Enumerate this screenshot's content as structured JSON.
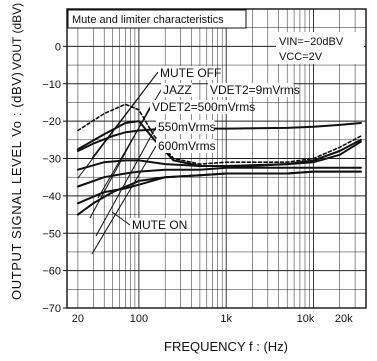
{
  "chart_data": {
    "type": "line",
    "title": "Mute and limiter characteristics",
    "conditions": [
      "VIN=−20dBV",
      "VCC=2V"
    ],
    "xlabel": "FREQUENCY f : (Hz)",
    "ylabel": "OUTPUT SIGNAL LEVEL Vo : (dBV)",
    "ylabel_top": "VOUT  (dBV)",
    "x_scale": "log",
    "xlim": [
      15,
      40000
    ],
    "ylim": [
      -70,
      10
    ],
    "x_ticks": [
      {
        "value": 20,
        "label": "20"
      },
      {
        "value": 100,
        "label": "100"
      },
      {
        "value": 1000,
        "label": "1k"
      },
      {
        "value": 10000,
        "label": "10k"
      },
      {
        "value": 20000,
        "label": "20k"
      }
    ],
    "y_ticks": [
      0,
      -10,
      -20,
      -30,
      -40,
      -50,
      -60,
      -70
    ],
    "y_tick_labels": [
      "0",
      "−10",
      "−20",
      "−30",
      "−40",
      "−50",
      "−60",
      "−70"
    ],
    "grid": true,
    "series": [
      {
        "name": "MUTE OFF",
        "dash": false,
        "stroke": "#111111",
        "x": [
          20,
          30,
          50,
          70,
          100,
          200,
          500,
          1000,
          5000,
          10000,
          20000,
          35000
        ],
        "y": [
          -28,
          -26,
          -24,
          -23,
          -22.5,
          -22,
          -22,
          -22,
          -21.8,
          -21.5,
          -21,
          -20.5
        ]
      },
      {
        "name": "JAZZ",
        "dash": true,
        "stroke": "#111111",
        "x": [
          20,
          40,
          70,
          100,
          150,
          250,
          500,
          1000,
          2000,
          5000,
          10000,
          20000,
          35000
        ],
        "y": [
          -22.5,
          -18,
          -15.5,
          -17,
          -24,
          -30,
          -31.5,
          -31,
          -31,
          -31,
          -30,
          -27,
          -24
        ]
      },
      {
        "name": "VDET2=9mVrms",
        "dash": false,
        "stroke": "#111111",
        "x": [
          20,
          40,
          70,
          100,
          150,
          250,
          500,
          1000,
          2000,
          5000,
          10000,
          20000,
          35000
        ],
        "y": [
          -27.5,
          -23.5,
          -20.5,
          -20,
          -25,
          -30.5,
          -32,
          -32,
          -32,
          -31.5,
          -30.5,
          -28,
          -25
        ]
      },
      {
        "name": "VDET2=500mVrms",
        "dash": false,
        "stroke": "#111111",
        "x": [
          20,
          40,
          70,
          100,
          200,
          500,
          1000,
          5000,
          10000,
          20000,
          35000
        ],
        "y": [
          -33,
          -31,
          -30.5,
          -30.5,
          -31.5,
          -32,
          -32,
          -31.5,
          -31,
          -29,
          -25.5
        ]
      },
      {
        "name": "550mVrms",
        "dash": false,
        "stroke": "#111111",
        "x": [
          20,
          40,
          70,
          100,
          200,
          500,
          1000,
          5000,
          10000,
          20000,
          35000
        ],
        "y": [
          -37.5,
          -35,
          -34,
          -33.5,
          -33,
          -33,
          -32.5,
          -32.5,
          -32.5,
          -32.5,
          -32.5
        ]
      },
      {
        "name": "600mVrms",
        "dash": false,
        "stroke": "#111111",
        "x": [
          20,
          40,
          70,
          100,
          200,
          500,
          1000,
          5000,
          10000,
          20000,
          35000
        ],
        "y": [
          -42,
          -39,
          -38,
          -37,
          -35,
          -34.5,
          -34,
          -34,
          -33.5,
          -33.5,
          -33.5
        ]
      },
      {
        "name": "MUTE ON",
        "dash": false,
        "stroke": "#111111",
        "x": [
          20,
          30,
          50,
          80,
          100,
          200,
          500,
          1000,
          5000,
          10000,
          20000,
          35000
        ],
        "y": [
          -45,
          -42,
          -39,
          -37,
          -36,
          -35,
          -34.5,
          -34,
          -34,
          -33.5,
          -33.5,
          -33.5
        ]
      }
    ],
    "annotations": [
      {
        "text": "MUTE OFF",
        "series": "MUTE OFF"
      },
      {
        "text": "JAZZ",
        "series": "JAZZ"
      },
      {
        "text": "VDET2=9mVrms",
        "series": "VDET2=9mVrms"
      },
      {
        "text": "VDET2=500mVrms",
        "series": "VDET2=500mVrms"
      },
      {
        "text": "550mVrms",
        "series": "550mVrms"
      },
      {
        "text": "600mVrms",
        "series": "600mVrms"
      },
      {
        "text": "MUTE ON",
        "series": "MUTE ON"
      }
    ]
  }
}
